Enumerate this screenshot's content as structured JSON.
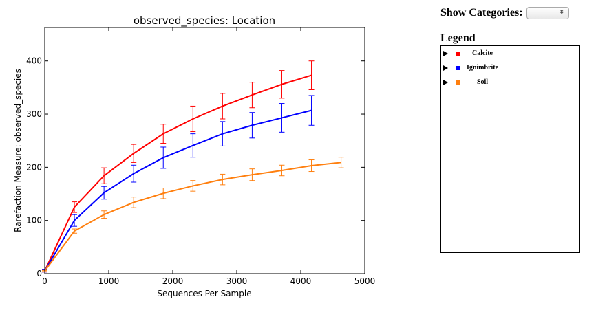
{
  "controls": {
    "show_categories_label": "Show Categories:",
    "select_value": "",
    "select_arrow": "⬍"
  },
  "legend": {
    "title": "Legend",
    "items": [
      {
        "label": "Calcite",
        "color": "#ff0000"
      },
      {
        "label": "Ignimbrite",
        "color": "#0000ff"
      },
      {
        "label": "Soil",
        "color": "#ff7f0e"
      }
    ]
  },
  "chart_data": {
    "type": "line",
    "title": "observed_species: Location",
    "xlabel": "Sequences Per Sample",
    "ylabel": "Rarefaction Measure: observed_species",
    "xlim": [
      0,
      5000
    ],
    "ylim": [
      0,
      463
    ],
    "xticks": [
      0,
      1000,
      2000,
      3000,
      4000,
      5000
    ],
    "yticks": [
      0,
      100,
      200,
      300,
      400
    ],
    "grid": false,
    "series": [
      {
        "name": "Calcite",
        "color": "#ff0000",
        "x": [
          0,
          463,
          926,
          1389,
          1852,
          2315,
          2778,
          3241,
          3704,
          4167
        ],
        "y": [
          5,
          125,
          184,
          226,
          263,
          291,
          315,
          336,
          356,
          373
        ],
        "err": [
          2,
          10,
          15,
          17,
          18,
          24,
          24,
          24,
          26,
          27
        ]
      },
      {
        "name": "Ignimbrite",
        "color": "#0000ff",
        "x": [
          0,
          463,
          926,
          1389,
          1852,
          2315,
          2778,
          3241,
          3704,
          4167
        ],
        "y": [
          5,
          100,
          152,
          188,
          218,
          241,
          263,
          279,
          293,
          307
        ],
        "err": [
          2,
          11,
          12,
          16,
          20,
          22,
          23,
          24,
          27,
          28
        ]
      },
      {
        "name": "Soil",
        "color": "#ff7f0e",
        "x": [
          0,
          463,
          926,
          1389,
          1852,
          2315,
          2778,
          3241,
          3704,
          4167,
          4630
        ],
        "y": [
          5,
          80,
          111,
          134,
          151,
          165,
          177,
          186,
          194,
          203,
          209
        ],
        "err": [
          1,
          4,
          7,
          10,
          10,
          10,
          10,
          11,
          10,
          11,
          10
        ]
      }
    ]
  }
}
